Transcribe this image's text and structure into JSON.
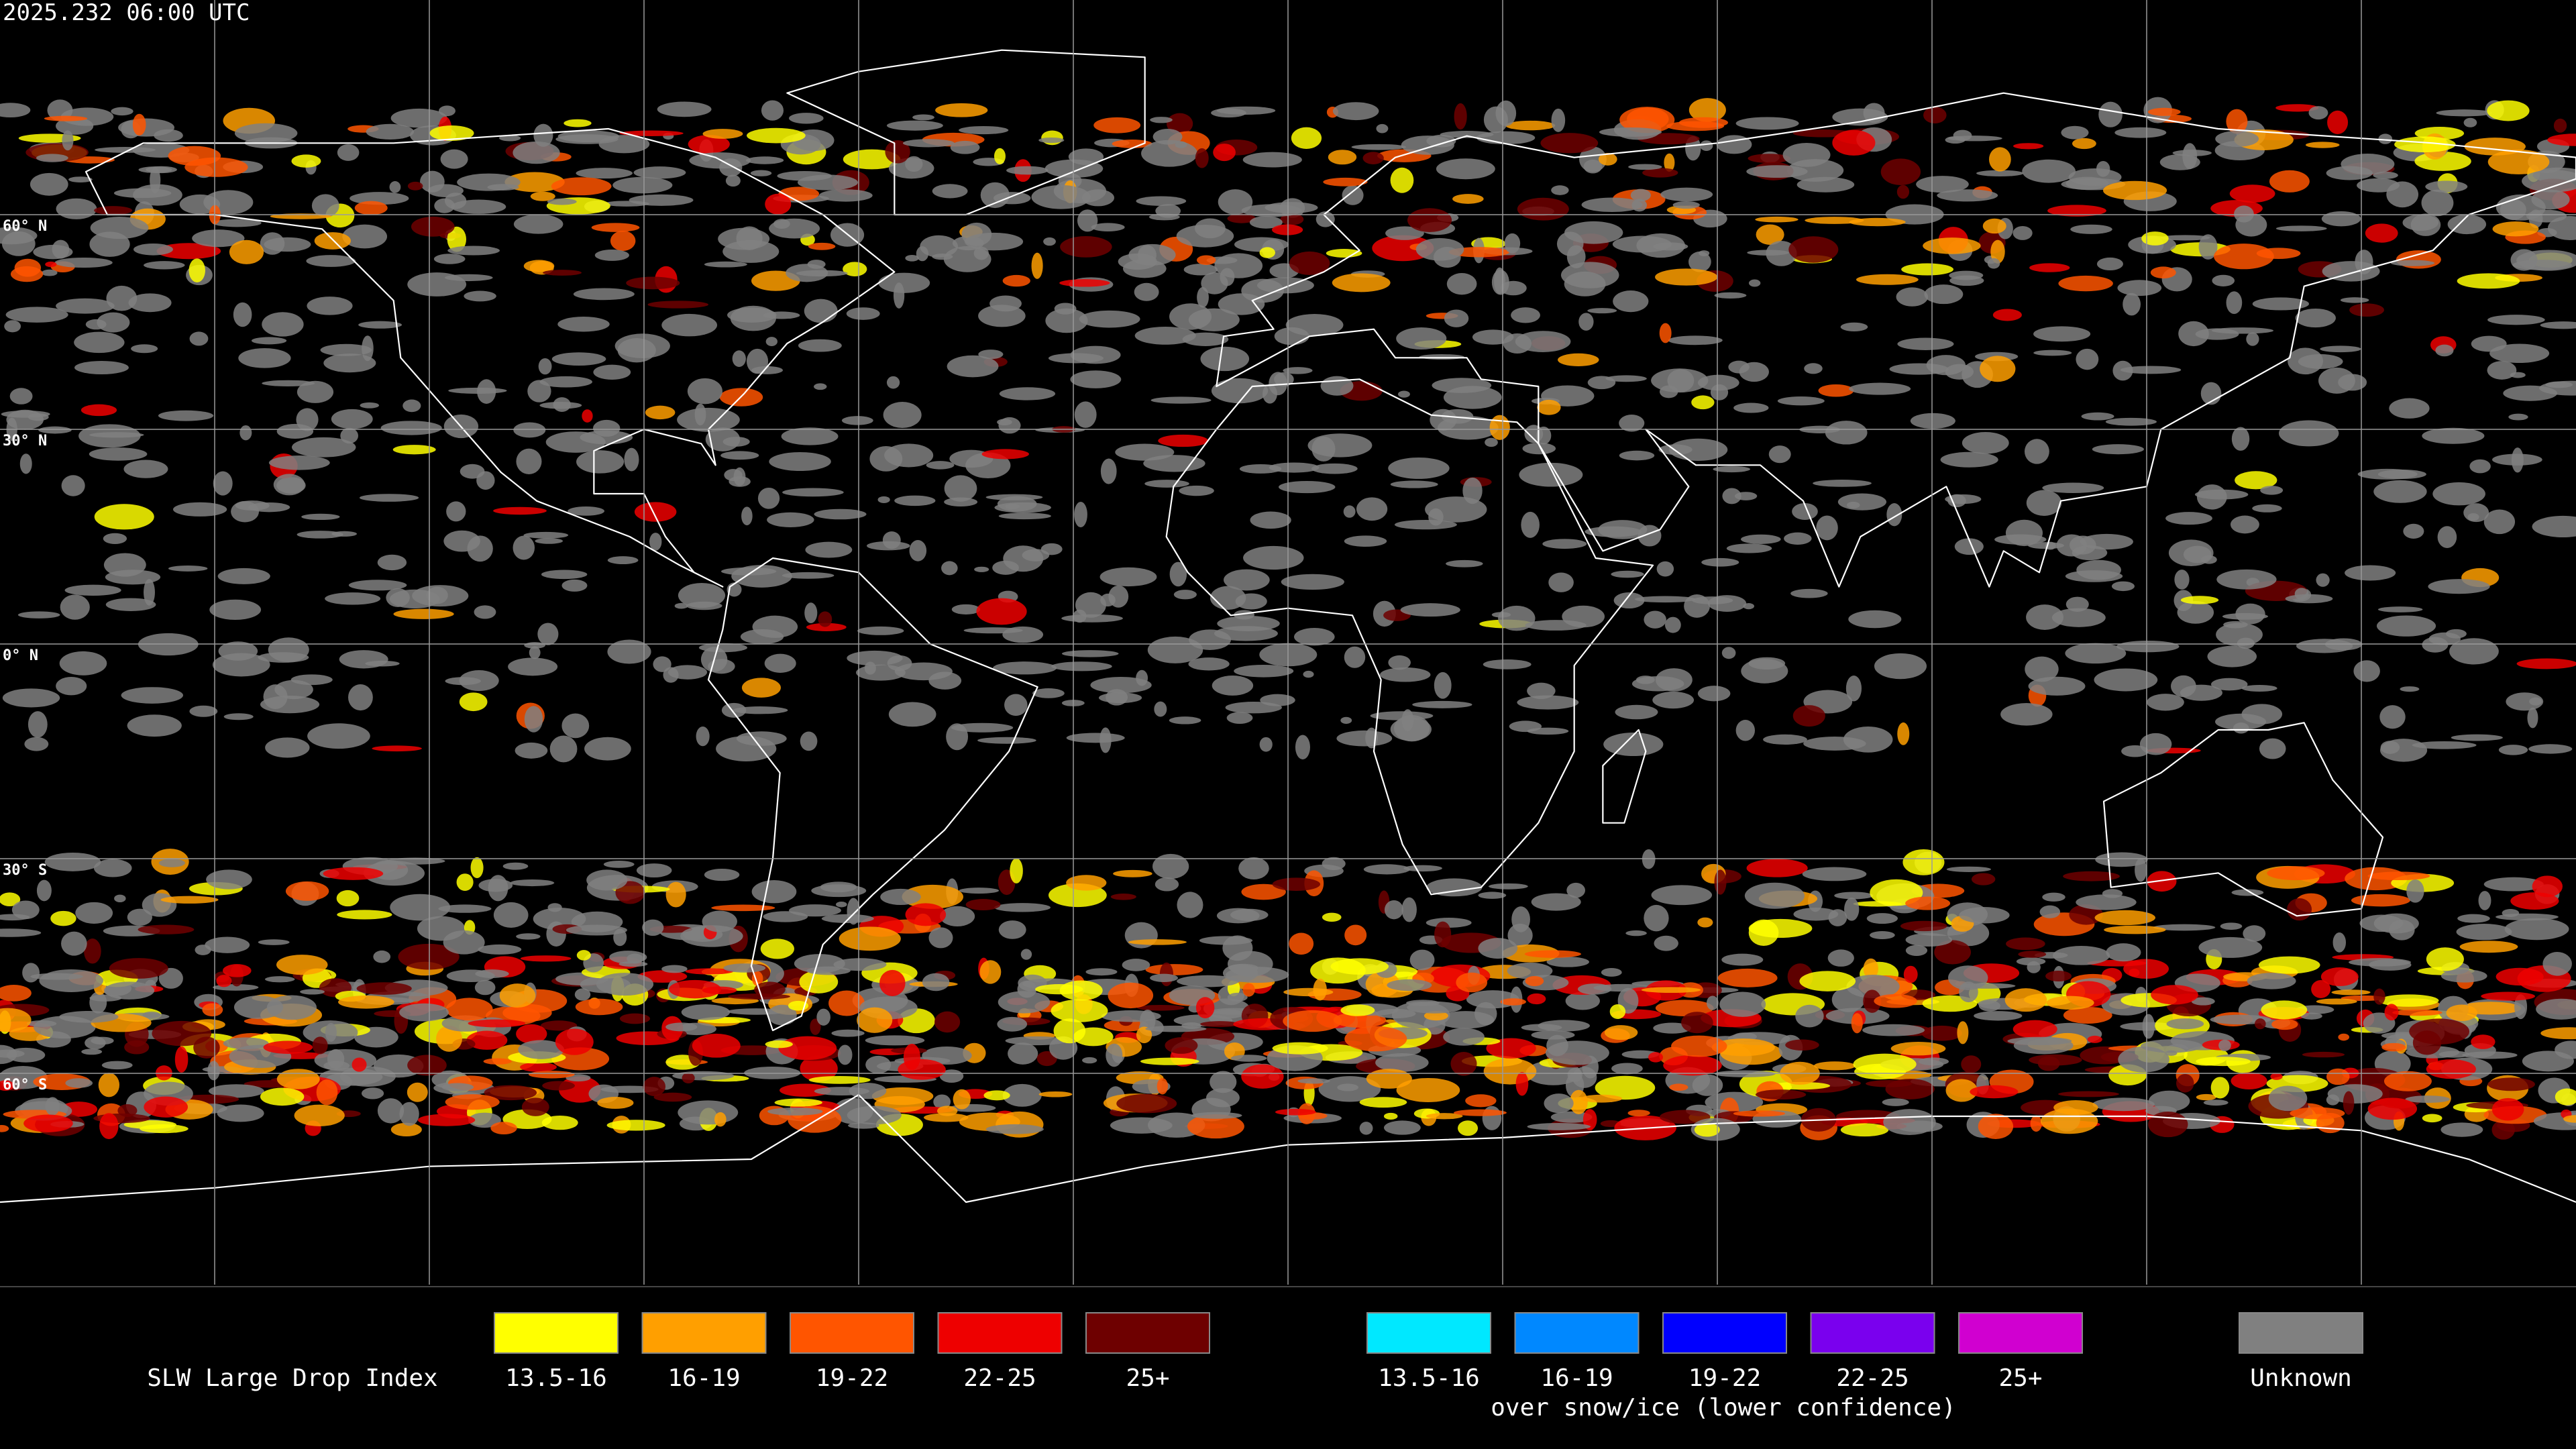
{
  "header": {
    "timestamp": "2025.232 06:00 UTC"
  },
  "map": {
    "latitude_labels": [
      "60° N",
      "30° N",
      "0° N",
      "30° S",
      "60° S"
    ]
  },
  "legend": {
    "title": "SLW Large Drop Index",
    "groups": [
      {
        "items": [
          {
            "label": "13.5-16",
            "color": "#ffff00"
          },
          {
            "label": "16-19",
            "color": "#ff9f00"
          },
          {
            "label": "19-22",
            "color": "#ff5500"
          },
          {
            "label": "22-25",
            "color": "#ee0000"
          },
          {
            "label": "25+",
            "color": "#6e0000"
          }
        ]
      },
      {
        "items": [
          {
            "label": "13.5-16",
            "color": "#00e8ff"
          },
          {
            "label": "16-19",
            "color": "#0088ff"
          },
          {
            "label": "19-22",
            "color": "#0000ff"
          },
          {
            "label": "22-25",
            "color": "#7a00ee"
          },
          {
            "label": "25+",
            "color": "#d000d0"
          }
        ],
        "caption": "over snow/ice (lower confidence)"
      }
    ],
    "unknown": {
      "label": "Unknown",
      "color": "#808080"
    }
  }
}
